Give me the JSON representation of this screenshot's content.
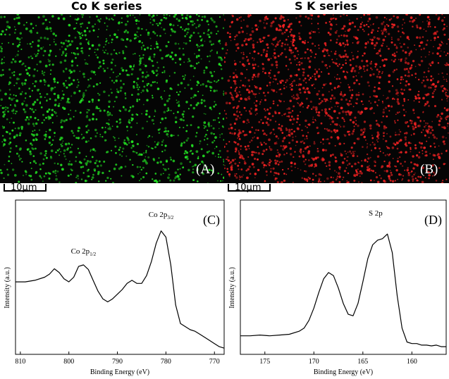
{
  "maps": [
    {
      "title": "Co K series",
      "label": "(A)",
      "color": "#22dd22",
      "scale_bar": "10μm"
    },
    {
      "title": "S K series",
      "label": "(B)",
      "color": "#ee2222",
      "scale_bar": "10μm"
    }
  ],
  "chart_data": [
    {
      "type": "line",
      "panel_label": "(C)",
      "xlabel": "Binding Energy (eV)",
      "ylabel": "Intensity (a.u.)",
      "xlim": [
        811,
        768
      ],
      "x_reversed": true,
      "x_ticks": [
        810,
        800,
        790,
        780,
        770
      ],
      "y_ticks_shown": false,
      "annotations": [
        {
          "text": "Co 2p",
          "sub": "1/2",
          "x": 797
        },
        {
          "text": "Co 2p",
          "sub": "3/2",
          "x": 781
        }
      ],
      "series": [
        {
          "x": [
            811,
            809,
            807,
            805,
            804,
            803,
            802,
            801,
            800,
            799,
            798,
            797,
            796,
            795,
            794,
            793,
            792,
            791,
            790,
            789,
            788,
            787,
            786,
            785,
            784,
            783,
            782,
            781,
            780,
            779,
            778,
            777,
            776,
            775,
            774,
            773,
            772,
            771,
            770,
            769,
            768
          ],
          "y": [
            0.47,
            0.47,
            0.48,
            0.5,
            0.52,
            0.555,
            0.53,
            0.49,
            0.47,
            0.5,
            0.57,
            0.58,
            0.55,
            0.48,
            0.41,
            0.36,
            0.34,
            0.36,
            0.39,
            0.42,
            0.46,
            0.48,
            0.46,
            0.46,
            0.51,
            0.6,
            0.72,
            0.8,
            0.76,
            0.58,
            0.32,
            0.2,
            0.18,
            0.16,
            0.15,
            0.13,
            0.11,
            0.09,
            0.07,
            0.05,
            0.04
          ]
        }
      ]
    },
    {
      "type": "line",
      "panel_label": "(D)",
      "xlabel": "Binding Energy (eV)",
      "ylabel": "Intensity (a.u.)",
      "xlim": [
        177.5,
        156.5
      ],
      "x_reversed": true,
      "x_ticks": [
        175,
        170,
        165,
        160
      ],
      "y_ticks_shown": false,
      "annotations": [
        {
          "text": "S 2p",
          "sub": "",
          "x": 163.7
        }
      ],
      "series": [
        {
          "x": [
            177.5,
            176.5,
            175.5,
            174.5,
            173.5,
            172.5,
            171.5,
            171,
            170.5,
            170,
            169.5,
            169,
            168.5,
            168,
            167.5,
            167,
            166.5,
            166,
            165.5,
            165,
            164.5,
            164,
            163.5,
            163,
            162.5,
            162,
            161.5,
            161,
            160.5,
            160,
            159.5,
            159,
            158.5,
            158,
            157.5,
            157,
            156.5
          ],
          "y": [
            0.12,
            0.12,
            0.125,
            0.12,
            0.125,
            0.13,
            0.15,
            0.17,
            0.22,
            0.3,
            0.4,
            0.49,
            0.53,
            0.51,
            0.43,
            0.33,
            0.26,
            0.25,
            0.33,
            0.47,
            0.62,
            0.71,
            0.74,
            0.75,
            0.78,
            0.66,
            0.38,
            0.17,
            0.08,
            0.07,
            0.07,
            0.06,
            0.06,
            0.055,
            0.06,
            0.05,
            0.05
          ]
        }
      ]
    }
  ]
}
